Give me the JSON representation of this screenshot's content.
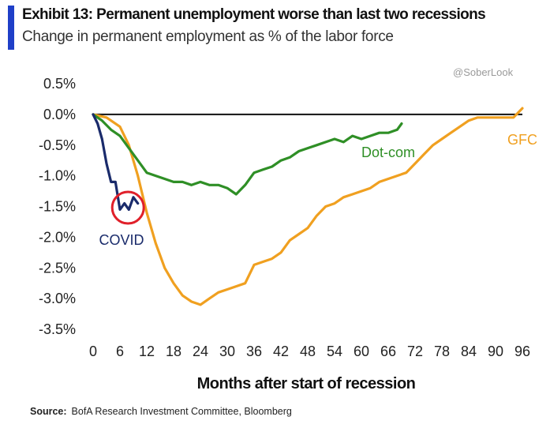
{
  "header": {
    "title": "Exhibit 13: Permanent unemployment worse than last two recessions",
    "subtitle": "Change in permanent employment as % of the labor force"
  },
  "watermark": "@SoberLook",
  "source": {
    "label": "Source:",
    "text": "BofA Research Investment Committee, Bloomberg"
  },
  "colors": {
    "accent": "#1f3fc8",
    "covid": "#1a2b6b",
    "dotcom": "#2f8f26",
    "gfc": "#f0a020",
    "zero_line": "#111111",
    "highlight_circle": "#e0202a"
  },
  "chart_data": {
    "type": "line",
    "title": "Exhibit 13: Permanent unemployment worse than last two recessions",
    "subtitle": "Change in permanent employment as % of the labor force",
    "xlabel": "Months after start of recession",
    "ylabel": "",
    "xlim": [
      0,
      96
    ],
    "ylim": [
      -3.5,
      0.5
    ],
    "x_ticks": [
      "0",
      "6",
      "12",
      "18",
      "24",
      "30",
      "36",
      "42",
      "48",
      "54",
      "60",
      "66",
      "72",
      "78",
      "84",
      "90",
      "96"
    ],
    "y_ticks": [
      "0.5%",
      "0.0%",
      "-0.5%",
      "-1.0%",
      "-1.5%",
      "-2.0%",
      "-2.5%",
      "-3.0%",
      "-3.5%"
    ],
    "legend": "inline labels",
    "grid": false,
    "series": [
      {
        "name": "COVID",
        "color": "#1a2b6b",
        "x": [
          0,
          1,
          2,
          3,
          4,
          5,
          6,
          7,
          8,
          9,
          10
        ],
        "y": [
          0.0,
          -0.15,
          -0.4,
          -0.8,
          -1.1,
          -1.1,
          -1.55,
          -1.45,
          -1.55,
          -1.35,
          -1.45
        ]
      },
      {
        "name": "Dot-com",
        "color": "#2f8f26",
        "x": [
          0,
          2,
          4,
          6,
          8,
          10,
          12,
          14,
          16,
          18,
          20,
          22,
          24,
          26,
          28,
          30,
          32,
          34,
          36,
          38,
          40,
          42,
          44,
          46,
          48,
          50,
          52,
          54,
          56,
          58,
          60,
          62,
          64,
          66,
          68,
          69
        ],
        "y": [
          0.0,
          -0.1,
          -0.25,
          -0.35,
          -0.55,
          -0.75,
          -0.95,
          -1.0,
          -1.05,
          -1.1,
          -1.1,
          -1.15,
          -1.1,
          -1.15,
          -1.15,
          -1.2,
          -1.3,
          -1.15,
          -0.95,
          -0.9,
          -0.85,
          -0.75,
          -0.7,
          -0.6,
          -0.55,
          -0.5,
          -0.45,
          -0.4,
          -0.45,
          -0.35,
          -0.4,
          -0.35,
          -0.3,
          -0.3,
          -0.25,
          -0.15
        ]
      },
      {
        "name": "GFC",
        "color": "#f0a020",
        "x": [
          0,
          3,
          6,
          8,
          10,
          12,
          14,
          16,
          18,
          20,
          22,
          24,
          26,
          28,
          30,
          32,
          34,
          36,
          38,
          40,
          42,
          44,
          46,
          48,
          50,
          52,
          54,
          56,
          58,
          60,
          62,
          64,
          66,
          68,
          70,
          72,
          74,
          76,
          78,
          80,
          82,
          84,
          86,
          88,
          90,
          92,
          94,
          96
        ],
        "y": [
          0.0,
          -0.05,
          -0.2,
          -0.5,
          -1.0,
          -1.6,
          -2.1,
          -2.5,
          -2.75,
          -2.95,
          -3.05,
          -3.1,
          -3.0,
          -2.9,
          -2.85,
          -2.8,
          -2.75,
          -2.45,
          -2.4,
          -2.35,
          -2.25,
          -2.05,
          -1.95,
          -1.85,
          -1.65,
          -1.5,
          -1.45,
          -1.35,
          -1.3,
          -1.25,
          -1.2,
          -1.1,
          -1.05,
          -1.0,
          -0.95,
          -0.8,
          -0.65,
          -0.5,
          -0.4,
          -0.3,
          -0.2,
          -0.1,
          -0.05,
          -0.05,
          -0.05,
          -0.05,
          -0.05,
          0.1
        ]
      }
    ],
    "annotations": [
      {
        "text": "COVID",
        "series": "COVID"
      },
      {
        "text": "Dot-com",
        "series": "Dot-com"
      },
      {
        "text": "GFC",
        "series": "GFC"
      }
    ]
  }
}
